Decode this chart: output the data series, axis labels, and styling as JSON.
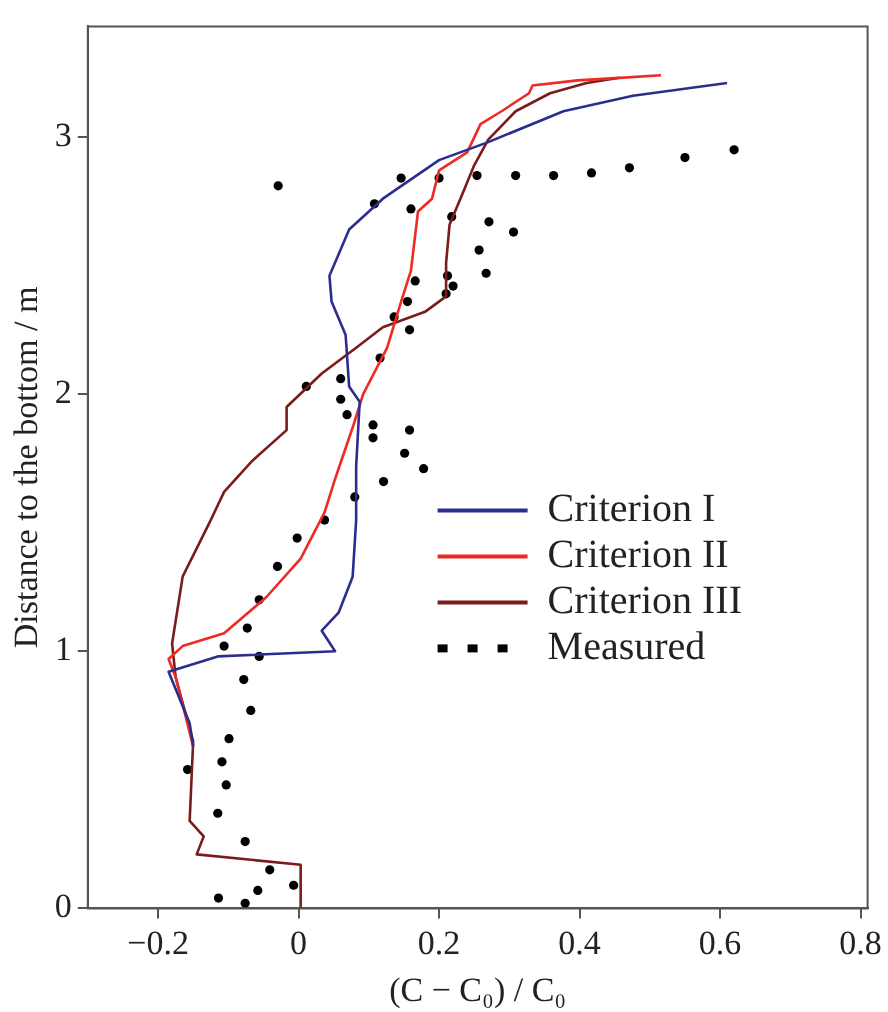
{
  "chart_data": {
    "type": "line",
    "xlabel": "(C − C₀) / C₀",
    "ylabel": "Distance to the bottom / m",
    "xlim": [
      -0.3,
      0.81
    ],
    "ylim": [
      0,
      3.43
    ],
    "xticks": [
      {
        "value": -0.2,
        "label": "−0.2"
      },
      0,
      0.2,
      0.4,
      0.6,
      0.8
    ],
    "yticks": [
      0,
      1,
      2,
      3
    ],
    "grid": false,
    "legend": "right",
    "line_style": "solid",
    "series": [
      {
        "name": "Criterion I",
        "color": "#2b2e8f",
        "marker": "none",
        "x": [
          0.61,
          0.476,
          0.377,
          0.27,
          0.2,
          0.12,
          0.072,
          0.044,
          0.047,
          0.067,
          0.072,
          0.087,
          0.082,
          0.082,
          0.077,
          0.057,
          0.033,
          0.052,
          -0.115,
          -0.185,
          -0.155,
          -0.15
        ],
        "values": [
          3.21,
          3.16,
          3.1,
          2.98,
          2.91,
          2.76,
          2.64,
          2.46,
          2.36,
          2.23,
          2.03,
          1.97,
          1.72,
          1.51,
          1.29,
          1.15,
          1.08,
          1.0,
          0.98,
          0.92,
          0.72,
          0.63
        ]
      },
      {
        "name": "Criterion II",
        "color": "#ee2a24",
        "marker": "none",
        "x": [
          0.516,
          0.457,
          0.397,
          0.333,
          0.328,
          0.289,
          0.259,
          0.24,
          0.2,
          0.19,
          0.17,
          0.16,
          0.146,
          0.126,
          0.092,
          0.077,
          0.052,
          0.037,
          0.003,
          -0.046,
          -0.106,
          -0.165,
          -0.185,
          -0.175,
          -0.15
        ],
        "values": [
          3.24,
          3.23,
          3.22,
          3.2,
          3.17,
          3.1,
          3.05,
          2.94,
          2.87,
          2.76,
          2.71,
          2.48,
          2.36,
          2.18,
          2.0,
          1.87,
          1.67,
          1.54,
          1.36,
          1.21,
          1.07,
          1.02,
          0.97,
          0.9,
          0.63
        ]
      },
      {
        "name": "Criterion III",
        "color": "#7b1c1c",
        "marker": "none",
        "x": [
          0.457,
          0.41,
          0.358,
          0.309,
          0.27,
          0.25,
          0.235,
          0.215,
          0.21,
          0.21,
          0.18,
          0.12,
          0.082,
          0.033,
          -0.017,
          -0.017,
          -0.066,
          -0.106,
          -0.125,
          -0.165,
          -0.18,
          -0.175,
          -0.15,
          -0.155,
          -0.135,
          -0.145,
          0.003,
          0.003
        ],
        "values": [
          3.23,
          3.21,
          3.17,
          3.1,
          2.99,
          2.89,
          2.79,
          2.66,
          2.51,
          2.38,
          2.32,
          2.26,
          2.18,
          2.08,
          1.95,
          1.86,
          1.74,
          1.62,
          1.51,
          1.29,
          1.03,
          0.9,
          0.65,
          0.34,
          0.28,
          0.21,
          0.17,
          0.0
        ]
      },
      {
        "name": "Measured",
        "type": "scatter",
        "color": "#000000",
        "marker": "circle",
        "x": [
          -0.029,
          0.146,
          0.2,
          0.254,
          0.309,
          0.363,
          0.417,
          0.471,
          0.55,
          0.62,
          0.108,
          0.16,
          0.218,
          0.271,
          0.306,
          0.257,
          0.267,
          0.166,
          0.212,
          0.22,
          0.21,
          0.155,
          0.136,
          0.158,
          0.116,
          0.011,
          0.06,
          0.06,
          0.069,
          0.106,
          0.158,
          0.106,
          0.151,
          0.178,
          0.121,
          0.08,
          0.037,
          -0.002,
          -0.03,
          -0.056,
          -0.073,
          -0.106,
          -0.056,
          -0.078,
          -0.068,
          -0.099,
          -0.158,
          -0.109,
          -0.103,
          -0.115,
          -0.076,
          -0.041,
          -0.007,
          -0.058,
          -0.114,
          -0.076
        ],
        "values": [
          2.81,
          2.84,
          2.84,
          2.85,
          2.85,
          2.85,
          2.86,
          2.88,
          2.92,
          2.95,
          2.74,
          2.72,
          2.69,
          2.67,
          2.63,
          2.56,
          2.47,
          2.44,
          2.46,
          2.42,
          2.39,
          2.36,
          2.3,
          2.25,
          2.14,
          2.03,
          2.06,
          1.98,
          1.92,
          1.88,
          1.86,
          1.83,
          1.77,
          1.71,
          1.66,
          1.6,
          1.51,
          1.44,
          1.33,
          1.2,
          1.09,
          1.02,
          0.98,
          0.89,
          0.77,
          0.66,
          0.54,
          0.57,
          0.48,
          0.37,
          0.26,
          0.15,
          0.09,
          0.07,
          0.04,
          0.02
        ]
      }
    ]
  }
}
